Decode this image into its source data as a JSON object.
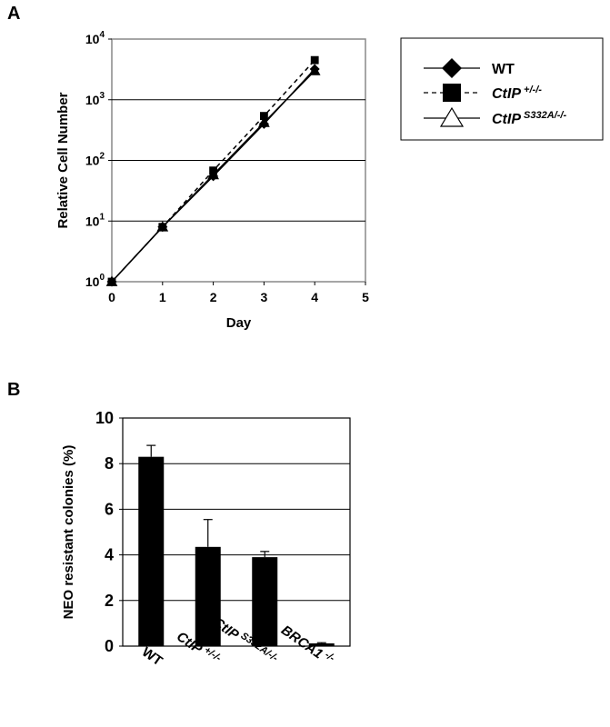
{
  "panels": {
    "a": "A",
    "b": "B"
  },
  "chart_data": [
    {
      "type": "line",
      "xlabel": "Day",
      "ylabel": "Relative Cell Number",
      "y_scale": "log",
      "xlim": [
        0,
        5
      ],
      "ylim": [
        1,
        10000
      ],
      "x_ticks": [
        "0",
        "1",
        "2",
        "3",
        "4",
        "5"
      ],
      "y_ticks": [
        {
          "base": "10",
          "exp": "0"
        },
        {
          "base": "10",
          "exp": "1"
        },
        {
          "base": "10",
          "exp": "2"
        },
        {
          "base": "10",
          "exp": "3"
        },
        {
          "base": "10",
          "exp": "4"
        }
      ],
      "grid": "horizontal",
      "legend_placement": "right",
      "x": [
        0,
        1,
        2,
        3,
        4
      ],
      "series": [
        {
          "name": "WT",
          "name_sup": "",
          "marker": "diamond",
          "line": "solid",
          "values": [
            1,
            8,
            55,
            400,
            3200
          ]
        },
        {
          "name": "CtIP",
          "name_sup": "+/-/-",
          "marker": "square",
          "line": "dashed",
          "values": [
            1,
            8,
            68,
            540,
            4500
          ]
        },
        {
          "name": "CtIP",
          "name_sup": "S332A/-/-",
          "marker": "triangle",
          "line": "solid",
          "values": [
            1,
            8,
            58,
            420,
            3000
          ]
        }
      ]
    },
    {
      "type": "bar",
      "ylabel": "NEO resistant colonies (%)",
      "ylim": [
        0,
        10
      ],
      "y_ticks": [
        "0",
        "2",
        "4",
        "6",
        "8",
        "10"
      ],
      "grid": "horizontal",
      "categories": [
        {
          "base": "WT",
          "sup": ""
        },
        {
          "base": "CtIP",
          "sup": "+/-/-"
        },
        {
          "base": "CtIP",
          "sup": "S332A/-/-"
        },
        {
          "base": "BRCA1",
          "sup": "-/-"
        }
      ],
      "values": [
        8.3,
        4.35,
        3.9,
        0.12
      ],
      "errors": [
        0.5,
        1.2,
        0.25,
        0.03
      ],
      "bar_color": "#000000"
    }
  ]
}
